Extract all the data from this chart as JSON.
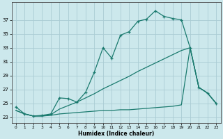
{
  "xlabel": "Humidex (Indice chaleur)",
  "bg_color": "#cce8ec",
  "grid_color": "#aaccd4",
  "line_color": "#1a7a6e",
  "xlim": [
    -0.5,
    23.5
  ],
  "ylim": [
    22.2,
    39.5
  ],
  "yticks": [
    23,
    25,
    27,
    29,
    31,
    33,
    35,
    37
  ],
  "xticks": [
    0,
    1,
    2,
    3,
    4,
    5,
    6,
    7,
    8,
    9,
    10,
    11,
    12,
    13,
    14,
    15,
    16,
    17,
    18,
    19,
    20,
    21,
    22,
    23
  ],
  "line_a_x": [
    0,
    1,
    2,
    3,
    4,
    5,
    6,
    7,
    8,
    9,
    10,
    11,
    12,
    13,
    14,
    15,
    16,
    17,
    18,
    19,
    20,
    21,
    22,
    23
  ],
  "line_a_y": [
    24.5,
    23.5,
    23.2,
    23.3,
    23.5,
    25.8,
    25.7,
    25.2,
    26.6,
    29.5,
    33.0,
    31.5,
    34.8,
    35.3,
    36.8,
    37.1,
    38.3,
    37.5,
    37.2,
    37.0,
    33.0,
    27.3,
    26.5,
    25.0
  ],
  "line_b_x": [
    0,
    1,
    2,
    3,
    4,
    5,
    6,
    7,
    8,
    9,
    10,
    11,
    12,
    13,
    14,
    15,
    16,
    17,
    18,
    19,
    20,
    21,
    22,
    23
  ],
  "line_b_y": [
    24.0,
    23.5,
    23.2,
    23.2,
    23.4,
    24.2,
    24.7,
    25.2,
    25.8,
    26.4,
    27.1,
    27.7,
    28.3,
    28.9,
    29.6,
    30.2,
    30.8,
    31.4,
    32.0,
    32.6,
    33.0,
    27.3,
    26.5,
    25.0
  ],
  "line_c_x": [
    0,
    1,
    2,
    3,
    4,
    5,
    6,
    7,
    8,
    9,
    10,
    11,
    12,
    13,
    14,
    15,
    16,
    17,
    18,
    19,
    20,
    21,
    22,
    23
  ],
  "line_c_y": [
    24.0,
    23.5,
    23.2,
    23.2,
    23.3,
    23.5,
    23.6,
    23.7,
    23.8,
    23.9,
    24.0,
    24.0,
    24.1,
    24.1,
    24.2,
    24.3,
    24.4,
    24.5,
    24.6,
    24.8,
    33.0,
    27.3,
    26.5,
    25.0
  ]
}
